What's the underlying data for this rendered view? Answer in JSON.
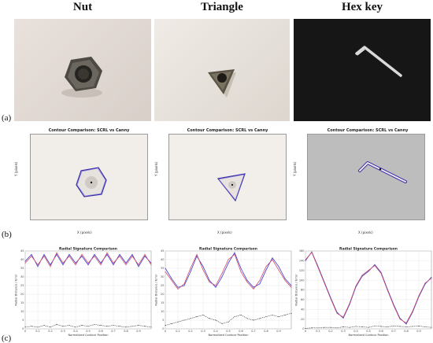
{
  "columns": [
    {
      "id": "nut",
      "label": "Nut"
    },
    {
      "id": "triangle",
      "label": "Triangle"
    },
    {
      "id": "hexkey",
      "label": "Hex key"
    }
  ],
  "row_labels": {
    "a": "(a)",
    "b": "(b)",
    "c": "(c)"
  },
  "contour": {
    "title": "Contour Comparison: SCRL vs Canny",
    "xlabel": "X (pixels)",
    "ylabel": "Y (pixels)",
    "series_colors": {
      "scrl": "#3b2aa8",
      "canny": "#6a6ad8"
    }
  },
  "chart_data": [
    {
      "type": "line",
      "title": "Radial Signature Comparison",
      "xlabel": "Normalized Contour Position",
      "ylabel": "Radial Distance / Error",
      "xlim": [
        0,
        1
      ],
      "ylim": [
        0,
        45
      ],
      "xticks": [
        0,
        0.1,
        0.2,
        0.3,
        0.4,
        0.5,
        0.6,
        0.7,
        0.8,
        0.9
      ],
      "yticks": [
        0,
        5,
        10,
        15,
        20,
        25,
        30,
        35,
        40,
        45
      ],
      "series": [
        {
          "color": "#3a3ad0",
          "x": [
            0,
            0.05,
            0.1,
            0.15,
            0.2,
            0.25,
            0.3,
            0.35,
            0.4,
            0.45,
            0.5,
            0.55,
            0.6,
            0.65,
            0.7,
            0.75,
            0.8,
            0.85,
            0.9,
            0.95,
            1.0
          ],
          "values": [
            39,
            43,
            36,
            43,
            37,
            43,
            37,
            43,
            38,
            42,
            37,
            43,
            38,
            43,
            37,
            43,
            38,
            43,
            36,
            42,
            38
          ]
        },
        {
          "color": "#d04a6a",
          "x": [
            0,
            0.05,
            0.1,
            0.15,
            0.2,
            0.25,
            0.3,
            0.35,
            0.4,
            0.45,
            0.5,
            0.55,
            0.6,
            0.65,
            0.7,
            0.75,
            0.8,
            0.85,
            0.9,
            0.95,
            1.0
          ],
          "values": [
            38,
            42,
            37,
            42,
            36,
            44,
            38,
            42,
            37,
            43,
            38,
            42,
            37,
            44,
            38,
            42,
            37,
            42,
            37,
            43,
            37
          ]
        },
        {
          "color": "#222222",
          "dashed": true,
          "x": [
            0,
            0.05,
            0.1,
            0.15,
            0.2,
            0.25,
            0.3,
            0.35,
            0.4,
            0.45,
            0.5,
            0.55,
            0.6,
            0.65,
            0.7,
            0.75,
            0.8,
            0.85,
            0.9,
            0.95,
            1.0
          ],
          "values": [
            1,
            1.5,
            1,
            2,
            1,
            2.5,
            1.5,
            2,
            1,
            2,
            1.5,
            2.5,
            2,
            1.5,
            2,
            1.5,
            1,
            1.5,
            2,
            1.5,
            1
          ]
        }
      ]
    },
    {
      "type": "line",
      "title": "Radial Signature Comparison",
      "xlabel": "Normalized Contour Position",
      "ylabel": "Radial Distance / Error",
      "xlim": [
        0,
        1
      ],
      "ylim": [
        0,
        45
      ],
      "xticks": [
        0,
        0.1,
        0.2,
        0.3,
        0.4,
        0.5,
        0.6,
        0.7,
        0.8,
        0.9
      ],
      "yticks": [
        0,
        5,
        10,
        15,
        20,
        25,
        30,
        35,
        40,
        45
      ],
      "series": [
        {
          "color": "#3a3ad0",
          "x": [
            0,
            0.05,
            0.1,
            0.15,
            0.2,
            0.25,
            0.3,
            0.35,
            0.4,
            0.45,
            0.5,
            0.55,
            0.6,
            0.65,
            0.7,
            0.75,
            0.8,
            0.85,
            0.9,
            0.95,
            1.0
          ],
          "values": [
            35,
            29,
            24,
            25,
            33,
            42,
            36,
            28,
            24,
            30,
            38,
            44,
            35,
            28,
            24,
            26,
            34,
            41,
            36,
            29,
            25
          ]
        },
        {
          "color": "#d04a6a",
          "x": [
            0,
            0.05,
            0.1,
            0.15,
            0.2,
            0.25,
            0.3,
            0.35,
            0.4,
            0.45,
            0.5,
            0.55,
            0.6,
            0.65,
            0.7,
            0.75,
            0.8,
            0.85,
            0.9,
            0.95,
            1.0
          ],
          "values": [
            33,
            28,
            23,
            26,
            35,
            43,
            34,
            27,
            25,
            32,
            40,
            43,
            33,
            27,
            23,
            28,
            36,
            40,
            34,
            28,
            24
          ]
        },
        {
          "color": "#222222",
          "dashed": true,
          "x": [
            0,
            0.05,
            0.1,
            0.15,
            0.2,
            0.25,
            0.3,
            0.35,
            0.4,
            0.45,
            0.5,
            0.55,
            0.6,
            0.65,
            0.7,
            0.75,
            0.8,
            0.85,
            0.9,
            0.95,
            1.0
          ],
          "values": [
            2,
            3,
            4,
            5,
            6,
            7,
            8,
            6,
            5,
            3,
            4,
            7,
            8,
            6,
            5,
            6,
            7,
            8,
            7,
            8,
            9
          ]
        }
      ]
    },
    {
      "type": "line",
      "title": "Radial Signature Comparison",
      "xlabel": "Normalized Contour Position",
      "ylabel": "Radial Distance / Error",
      "xlim": [
        0,
        1
      ],
      "ylim": [
        0,
        160
      ],
      "xticks": [
        0,
        0.1,
        0.2,
        0.3,
        0.4,
        0.5,
        0.6,
        0.7,
        0.8,
        0.9
      ],
      "yticks": [
        0,
        20,
        40,
        60,
        80,
        100,
        120,
        140,
        160
      ],
      "series": [
        {
          "color": "#3a3ad0",
          "x": [
            0,
            0.05,
            0.1,
            0.15,
            0.2,
            0.25,
            0.3,
            0.35,
            0.4,
            0.45,
            0.5,
            0.55,
            0.6,
            0.65,
            0.7,
            0.75,
            0.8,
            0.85,
            0.9,
            0.95,
            1.0
          ],
          "values": [
            140,
            158,
            128,
            96,
            64,
            34,
            22,
            50,
            86,
            108,
            118,
            132,
            116,
            82,
            50,
            22,
            10,
            34,
            66,
            92,
            106
          ]
        },
        {
          "color": "#d04a6a",
          "x": [
            0,
            0.05,
            0.1,
            0.15,
            0.2,
            0.25,
            0.3,
            0.35,
            0.4,
            0.45,
            0.5,
            0.55,
            0.6,
            0.65,
            0.7,
            0.75,
            0.8,
            0.85,
            0.9,
            0.95,
            1.0
          ],
          "values": [
            142,
            157,
            126,
            94,
            62,
            32,
            24,
            52,
            88,
            110,
            120,
            130,
            114,
            80,
            48,
            20,
            12,
            36,
            68,
            94,
            104
          ]
        },
        {
          "color": "#222222",
          "dashed": true,
          "x": [
            0,
            0.05,
            0.1,
            0.15,
            0.2,
            0.25,
            0.3,
            0.35,
            0.4,
            0.45,
            0.5,
            0.55,
            0.6,
            0.65,
            0.7,
            0.75,
            0.8,
            0.85,
            0.9,
            0.95,
            1.0
          ],
          "values": [
            1,
            2,
            2,
            3,
            3,
            2,
            4,
            3,
            5,
            4,
            3,
            6,
            5,
            4,
            6,
            5,
            4,
            5,
            6,
            4,
            3
          ]
        }
      ]
    }
  ]
}
